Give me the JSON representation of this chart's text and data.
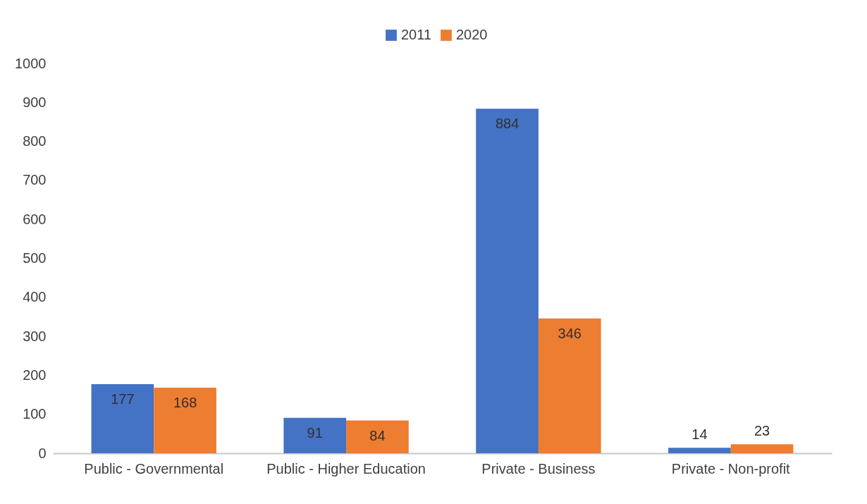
{
  "chart_data": {
    "type": "bar",
    "categories": [
      "Public - Governmental",
      "Public - Higher Education",
      "Private - Business",
      "Private - Non-profit"
    ],
    "series": [
      {
        "name": "2011",
        "color": "#4472c4",
        "values": [
          177,
          91,
          884,
          14
        ]
      },
      {
        "name": "2020",
        "color": "#ed7d31",
        "values": [
          168,
          84,
          346,
          23
        ]
      }
    ],
    "ylim": [
      0,
      1000
    ],
    "yticks": [
      0,
      100,
      200,
      300,
      400,
      500,
      600,
      700,
      800,
      900,
      1000
    ],
    "grid": false,
    "legend": "top",
    "data_labels": true
  }
}
